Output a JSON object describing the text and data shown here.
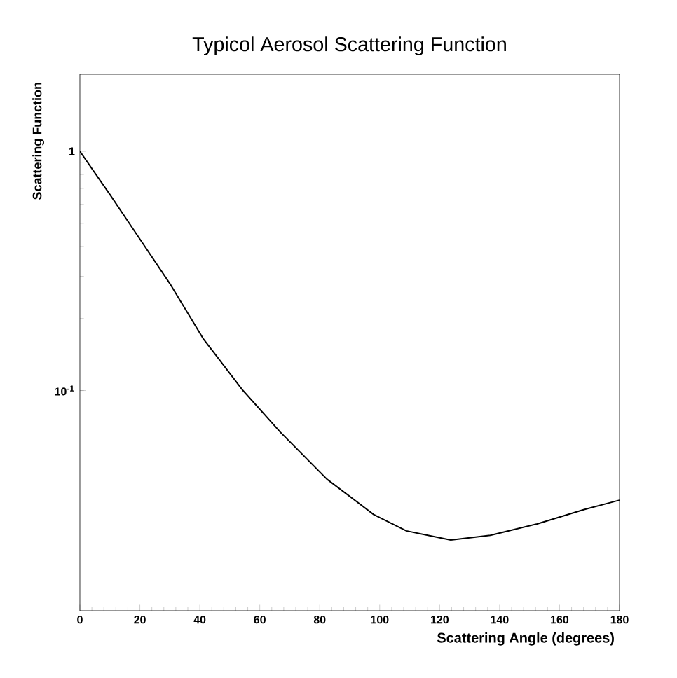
{
  "chart_data": {
    "type": "line",
    "title": "Typicol Aerosol Scattering Function",
    "xlabel": "Scattering Angle (degrees)",
    "ylabel": "Scattering Function",
    "x": [
      0,
      10,
      20,
      30,
      41.1,
      54.4,
      66.9,
      82.4,
      98.0,
      108.9,
      123.7,
      136.9,
      152.5,
      168.2,
      180
    ],
    "series": [
      {
        "color": "#000000",
        "values": [
          1.0,
          0.66,
          0.43,
          0.28,
          0.165,
          0.1,
          0.0669,
          0.0426,
          0.0303,
          0.0259,
          0.0237,
          0.0248,
          0.0277,
          0.0318,
          0.0348
        ]
      }
    ],
    "log": "y",
    "xlim": [
      0,
      180
    ],
    "ylim": [
      0.012,
      2.1
    ],
    "xticks": [
      0,
      20,
      40,
      60,
      80,
      100,
      120,
      140,
      160,
      180
    ],
    "yticks": [
      {
        "value": 0.1,
        "label": "10$^{-1}$"
      },
      1
    ],
    "grid": false,
    "marker": "none",
    "line_style": "solid"
  }
}
